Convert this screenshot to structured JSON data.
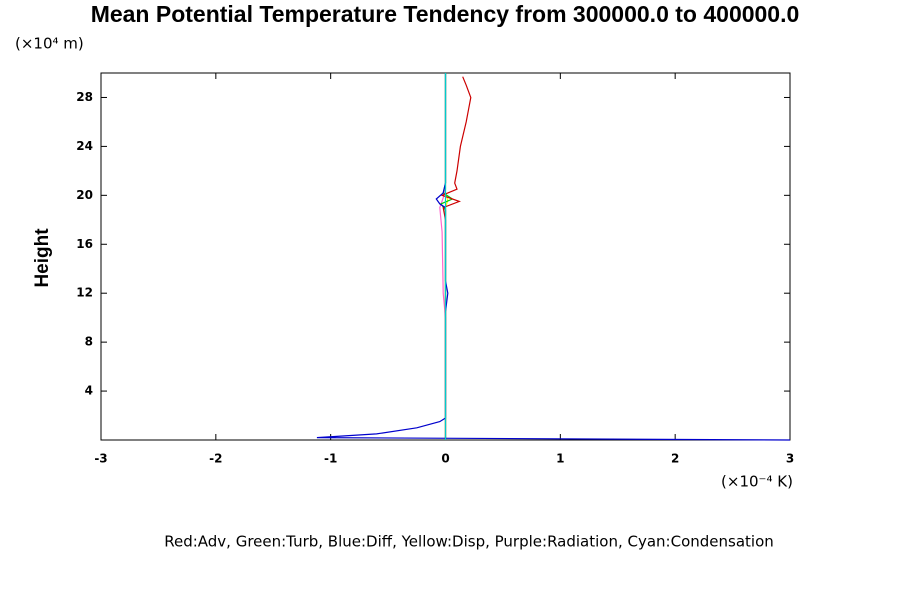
{
  "chart_data": {
    "type": "line",
    "title": "Mean Potential Temperature Tendency from 300000.0 to 400000.0",
    "y_unit_label": "(×10⁴ m)",
    "x_unit_label": "(×10⁻⁴ K)",
    "ylabel": "Height",
    "legend_text": "Red:Adv, Green:Turb, Blue:Diff, Yellow:Disp, Purple:Radiation, Cyan:Condensation",
    "xlim": [
      -3,
      3
    ],
    "xticks": [
      -3,
      -2,
      -1,
      0,
      1,
      2,
      3
    ],
    "ylim": [
      0,
      30
    ],
    "yticks": [
      4,
      8,
      12,
      16,
      20,
      24,
      28
    ],
    "series": [
      {
        "color": "#ffff00",
        "x": [
          0,
          0,
          0.02,
          0,
          0
        ],
        "values": [
          0,
          19,
          19.6,
          20.2,
          30
        ]
      },
      {
        "color": "#ff66cc",
        "x": [
          0,
          0,
          -0.02,
          -0.03,
          -0.05,
          -0.02,
          0,
          0
        ],
        "values": [
          0,
          10,
          12,
          17,
          19,
          19.8,
          20.5,
          30
        ]
      },
      {
        "color": "#00cc00",
        "x": [
          0,
          0,
          -0.04,
          0.06,
          -0.02,
          0,
          0
        ],
        "values": [
          0,
          18.8,
          19.3,
          19.7,
          20.2,
          21,
          30
        ]
      },
      {
        "color": "#cc0000",
        "x": [
          0,
          0,
          -0.02,
          0.12,
          -0.03,
          0.1,
          0.08,
          0.1,
          0.13,
          0.18,
          0.2,
          0.22,
          0.18,
          0.15
        ],
        "values": [
          0,
          18,
          19,
          19.5,
          20,
          20.5,
          21,
          22,
          24,
          26,
          27,
          28,
          29,
          29.7
        ]
      },
      {
        "color": "#0000cc",
        "x": [
          3,
          -1.12,
          -0.6,
          -0.25,
          -0.05,
          0,
          0,
          0.02,
          0,
          0,
          -0.05,
          -0.08,
          -0.02,
          0,
          0
        ],
        "values": [
          0,
          0.2,
          0.5,
          1,
          1.5,
          1.8,
          10.5,
          12,
          13,
          19,
          19.3,
          19.7,
          20.2,
          21,
          30
        ]
      },
      {
        "color": "#00cccc",
        "x": [
          0,
          0
        ],
        "values": [
          0,
          30
        ]
      }
    ]
  }
}
